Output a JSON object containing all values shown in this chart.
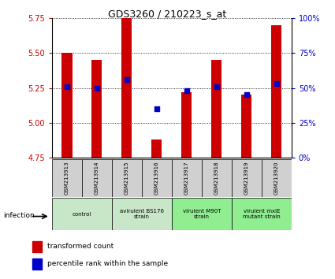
{
  "title": "GDS3260 / 210223_s_at",
  "samples": [
    "GSM213913",
    "GSM213914",
    "GSM213915",
    "GSM213916",
    "GSM213917",
    "GSM213918",
    "GSM213919",
    "GSM213920"
  ],
  "transformed_counts": [
    5.5,
    5.45,
    5.75,
    4.88,
    5.22,
    5.45,
    5.2,
    5.7
  ],
  "percentile_ranks": [
    51,
    50,
    56,
    35,
    48,
    51,
    45,
    53
  ],
  "ylim_left": [
    4.75,
    5.75
  ],
  "ylim_right": [
    0,
    100
  ],
  "yticks_left": [
    4.75,
    5.0,
    5.25,
    5.5,
    5.75
  ],
  "yticks_right": [
    0,
    25,
    50,
    75,
    100
  ],
  "bar_color": "#cc0000",
  "dot_color": "#0000cc",
  "bar_bottom": 4.75,
  "bar_width": 0.35,
  "left_tick_color": "#cc0000",
  "right_tick_color": "#0000cc",
  "group_configs": [
    {
      "start": 0,
      "end": 1,
      "label": "control",
      "color": "#c8e6c8"
    },
    {
      "start": 2,
      "end": 3,
      "label": "avirulent BS176\nstrain",
      "color": "#c8e6c8"
    },
    {
      "start": 4,
      "end": 5,
      "label": "virulent M90T\nstrain",
      "color": "#90ee90"
    },
    {
      "start": 6,
      "end": 7,
      "label": "virulent mxiE\nmutant strain",
      "color": "#90ee90"
    }
  ],
  "sample_box_color": "#d0d0d0",
  "xlabel_infection": "infection",
  "legend_bar_label": "transformed count",
  "legend_dot_label": "percentile rank within the sample"
}
